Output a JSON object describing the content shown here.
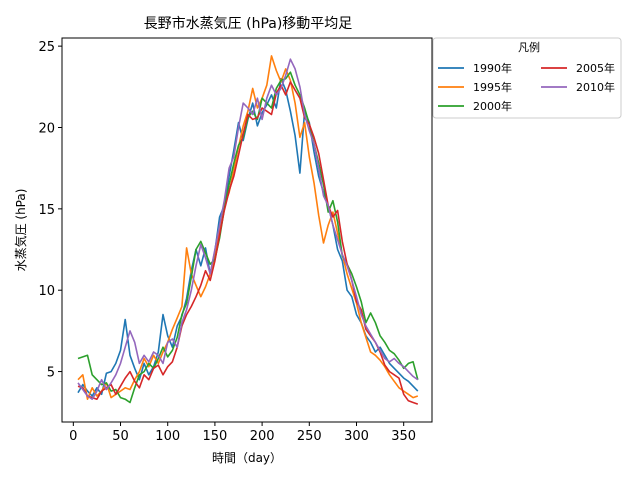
{
  "chart_data": {
    "type": "line",
    "title": "長野市水蒸気圧 (hPa)移動平均足",
    "xlabel": "時間（day）",
    "ylabel": "水蒸気圧 (hPa)",
    "xlim": [
      -12,
      380
    ],
    "ylim": [
      1.9,
      25.5
    ],
    "xticks": [
      0,
      50,
      100,
      150,
      200,
      250,
      300,
      350
    ],
    "yticks": [
      5,
      10,
      15,
      20,
      25
    ],
    "legend": {
      "title": "凡例",
      "placement": "outside-top-right",
      "columns": 2
    },
    "series": [
      {
        "name": "1990年",
        "color": "#1f77b4",
        "x": [
          5,
          10,
          15,
          20,
          25,
          30,
          35,
          40,
          45,
          50,
          55,
          60,
          65,
          70,
          75,
          80,
          85,
          90,
          95,
          100,
          105,
          110,
          115,
          120,
          125,
          130,
          135,
          140,
          145,
          150,
          155,
          160,
          165,
          170,
          175,
          180,
          185,
          190,
          195,
          200,
          205,
          210,
          215,
          220,
          225,
          230,
          235,
          240,
          245,
          250,
          255,
          260,
          265,
          270,
          275,
          280,
          285,
          290,
          295,
          300,
          305,
          310,
          315,
          320,
          325,
          330,
          335,
          340,
          345,
          350,
          355,
          360,
          365
        ],
        "y": [
          3.7,
          4.2,
          3.8,
          3.5,
          4.0,
          3.6,
          4.9,
          5.0,
          5.5,
          6.3,
          8.2,
          6.0,
          5.2,
          4.5,
          5.5,
          4.8,
          5.3,
          6.2,
          8.5,
          7.2,
          6.5,
          7.8,
          8.4,
          9.5,
          11.2,
          12.5,
          11.5,
          12.6,
          11.0,
          12.4,
          14.5,
          15.2,
          17.0,
          18.6,
          20.3,
          19.2,
          20.5,
          21.5,
          20.1,
          20.9,
          21.4,
          22.0,
          21.2,
          23.0,
          22.3,
          21.0,
          19.5,
          17.2,
          21.0,
          20.3,
          18.5,
          17.0,
          16.0,
          15.2,
          14.0,
          12.5,
          11.8,
          10.0,
          9.6,
          8.5,
          8.0,
          7.2,
          6.8,
          6.2,
          6.5,
          6.0,
          5.5,
          5.2,
          4.9,
          4.6,
          4.4,
          4.1,
          3.8
        ]
      },
      {
        "name": "1995年",
        "color": "#ff7f0e",
        "x": [
          5,
          10,
          15,
          20,
          25,
          30,
          35,
          40,
          45,
          50,
          55,
          60,
          65,
          70,
          75,
          80,
          85,
          90,
          95,
          100,
          105,
          110,
          115,
          120,
          125,
          130,
          135,
          140,
          145,
          150,
          155,
          160,
          165,
          170,
          175,
          180,
          185,
          190,
          195,
          200,
          205,
          210,
          215,
          220,
          225,
          230,
          235,
          240,
          245,
          250,
          255,
          260,
          265,
          270,
          275,
          280,
          285,
          290,
          295,
          300,
          305,
          310,
          315,
          320,
          325,
          330,
          335,
          340,
          345,
          350,
          355,
          360,
          365
        ],
        "y": [
          4.5,
          4.8,
          3.3,
          4.0,
          3.5,
          3.8,
          4.3,
          3.4,
          3.6,
          3.8,
          4.0,
          3.9,
          4.5,
          5.0,
          5.8,
          5.3,
          6.0,
          5.5,
          6.2,
          6.8,
          7.6,
          8.3,
          9.0,
          12.6,
          11.0,
          10.3,
          9.6,
          10.2,
          11.0,
          12.1,
          13.6,
          15.2,
          16.0,
          17.4,
          18.8,
          20.1,
          21.0,
          22.4,
          21.2,
          21.8,
          22.6,
          24.4,
          23.5,
          22.8,
          23.6,
          22.9,
          21.5,
          19.4,
          20.3,
          18.2,
          16.6,
          14.6,
          12.9,
          14.0,
          14.8,
          13.5,
          12.2,
          11.0,
          10.1,
          9.2,
          8.0,
          7.1,
          6.2,
          6.0,
          5.7,
          5.3,
          4.8,
          4.4,
          4.0,
          3.8,
          3.6,
          3.4,
          3.5
        ]
      },
      {
        "name": "2000年",
        "color": "#2ca02c",
        "x": [
          5,
          10,
          15,
          20,
          25,
          30,
          35,
          40,
          45,
          50,
          55,
          60,
          65,
          70,
          75,
          80,
          85,
          90,
          95,
          100,
          105,
          110,
          115,
          120,
          125,
          130,
          135,
          140,
          145,
          150,
          155,
          160,
          165,
          170,
          175,
          180,
          185,
          190,
          195,
          200,
          205,
          210,
          215,
          220,
          225,
          230,
          235,
          240,
          245,
          250,
          255,
          260,
          265,
          270,
          275,
          280,
          285,
          290,
          295,
          300,
          305,
          310,
          315,
          320,
          325,
          330,
          335,
          340,
          345,
          350,
          355,
          360,
          365
        ],
        "y": [
          5.8,
          5.9,
          6.0,
          4.8,
          4.5,
          4.2,
          4.3,
          3.8,
          3.9,
          3.4,
          3.3,
          3.1,
          4.0,
          4.8,
          5.0,
          5.5,
          5.2,
          5.8,
          6.5,
          5.9,
          6.3,
          7.1,
          8.5,
          9.2,
          10.8,
          12.5,
          13.0,
          12.3,
          11.6,
          11.9,
          13.2,
          15.0,
          16.5,
          17.8,
          18.9,
          19.4,
          20.6,
          21.0,
          20.5,
          21.8,
          21.5,
          21.2,
          22.4,
          22.9,
          23.0,
          23.4,
          22.6,
          22.0,
          21.2,
          20.2,
          19.0,
          17.8,
          16.5,
          14.8,
          15.5,
          14.2,
          12.1,
          11.6,
          11.0,
          10.2,
          9.3,
          8.0,
          8.6,
          8.0,
          7.2,
          6.8,
          6.3,
          6.1,
          5.7,
          5.2,
          5.5,
          5.6,
          4.5
        ]
      },
      {
        "name": "2005年",
        "color": "#d62728",
        "x": [
          5,
          10,
          15,
          20,
          25,
          30,
          35,
          40,
          45,
          50,
          55,
          60,
          65,
          70,
          75,
          80,
          85,
          90,
          95,
          100,
          105,
          110,
          115,
          120,
          125,
          130,
          135,
          140,
          145,
          150,
          155,
          160,
          165,
          170,
          175,
          180,
          185,
          190,
          195,
          200,
          205,
          210,
          215,
          220,
          225,
          230,
          235,
          240,
          245,
          250,
          255,
          260,
          265,
          270,
          275,
          280,
          285,
          290,
          295,
          300,
          305,
          310,
          315,
          320,
          325,
          330,
          335,
          340,
          345,
          350,
          355,
          360,
          365
        ],
        "y": [
          4.1,
          4.0,
          3.5,
          3.4,
          3.3,
          3.8,
          4.0,
          4.2,
          3.6,
          4.1,
          4.6,
          5.0,
          4.4,
          4.0,
          4.8,
          4.5,
          5.2,
          5.4,
          4.8,
          5.3,
          5.6,
          6.5,
          7.8,
          8.5,
          9.0,
          9.6,
          10.3,
          11.2,
          10.6,
          11.8,
          13.4,
          14.9,
          16.1,
          17.0,
          18.3,
          19.6,
          20.8,
          20.5,
          20.6,
          21.2,
          21.0,
          20.8,
          22.1,
          22.6,
          22.0,
          22.8,
          22.3,
          21.8,
          20.6,
          20.2,
          19.4,
          18.4,
          16.8,
          15.2,
          14.5,
          14.9,
          13.0,
          11.6,
          10.6,
          9.3,
          8.8,
          7.6,
          7.2,
          6.8,
          6.2,
          5.4,
          5.0,
          4.8,
          4.6,
          3.6,
          3.2,
          3.1,
          3.0
        ]
      },
      {
        "name": "2010年",
        "color": "#9467bd",
        "x": [
          5,
          10,
          15,
          20,
          25,
          30,
          35,
          40,
          45,
          50,
          55,
          60,
          65,
          70,
          75,
          80,
          85,
          90,
          95,
          100,
          105,
          110,
          115,
          120,
          125,
          130,
          135,
          140,
          145,
          150,
          155,
          160,
          165,
          170,
          175,
          180,
          185,
          190,
          195,
          200,
          205,
          210,
          215,
          220,
          225,
          230,
          235,
          240,
          245,
          250,
          255,
          260,
          265,
          270,
          275,
          280,
          285,
          290,
          295,
          300,
          305,
          310,
          315,
          320,
          325,
          330,
          335,
          340,
          345,
          350,
          355,
          360,
          365
        ],
        "y": [
          4.3,
          3.9,
          3.5,
          3.3,
          3.8,
          4.5,
          3.9,
          4.3,
          4.8,
          5.5,
          6.5,
          7.5,
          6.8,
          5.5,
          6.0,
          5.6,
          6.2,
          6.0,
          5.5,
          6.8,
          7.0,
          6.5,
          8.0,
          8.8,
          10.0,
          11.5,
          12.8,
          12.0,
          11.0,
          12.5,
          14.0,
          15.5,
          17.5,
          18.2,
          20.0,
          21.5,
          21.2,
          20.8,
          21.8,
          20.5,
          21.8,
          22.6,
          22.0,
          22.4,
          23.2,
          24.2,
          23.6,
          22.5,
          20.8,
          19.8,
          19.0,
          17.5,
          15.8,
          15.2,
          14.0,
          13.1,
          12.2,
          11.5,
          10.6,
          9.6,
          8.5,
          7.8,
          7.3,
          6.8,
          6.3,
          5.8,
          5.6,
          5.8,
          5.5,
          5.3,
          5.0,
          4.7,
          4.5
        ]
      }
    ]
  }
}
